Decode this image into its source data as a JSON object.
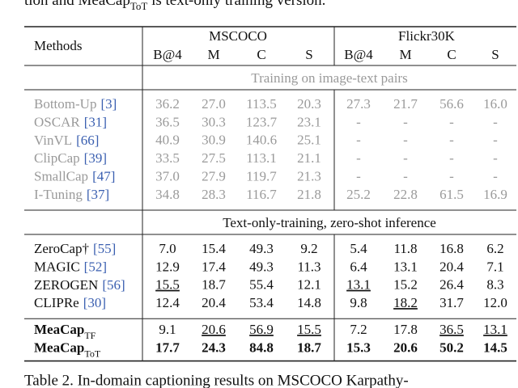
{
  "caption_top": {
    "text": "tion and MeaCap",
    "sub": "ToT",
    "tail": " is text-only training version."
  },
  "table": {
    "method_header": "Methods",
    "groups": [
      "MSCOCO",
      "Flickr30K"
    ],
    "columns": [
      "B@4",
      "M",
      "C",
      "S",
      "B@4",
      "M",
      "C",
      "S"
    ],
    "sections": [
      {
        "title": "Training on image-text pairs",
        "muted": true,
        "rows": [
          {
            "name": "Bottom-Up",
            "ref": "[3]",
            "cells": [
              "36.2",
              "27.0",
              "113.5",
              "20.3",
              "27.3",
              "21.7",
              "56.6",
              "16.0"
            ]
          },
          {
            "name": "OSCAR",
            "ref": "[31]",
            "cells": [
              "36.5",
              "30.3",
              "123.7",
              "23.1",
              "-",
              "-",
              "-",
              "-"
            ]
          },
          {
            "name": "VinVL",
            "ref": "[66]",
            "cells": [
              "40.9",
              "30.9",
              "140.6",
              "25.1",
              "-",
              "-",
              "-",
              "-"
            ]
          },
          {
            "name": "ClipCap",
            "ref": "[39]",
            "cells": [
              "33.5",
              "27.5",
              "113.1",
              "21.1",
              "-",
              "-",
              "-",
              "-"
            ]
          },
          {
            "name": "SmallCap",
            "ref": "[47]",
            "cells": [
              "37.0",
              "27.9",
              "119.7",
              "21.3",
              "-",
              "-",
              "-",
              "-"
            ]
          },
          {
            "name": "I-Tuning",
            "ref": "[37]",
            "cells": [
              "34.8",
              "28.3",
              "116.7",
              "21.8",
              "25.2",
              "22.8",
              "61.5",
              "16.9"
            ]
          }
        ]
      },
      {
        "title": "Text-only-training, zero-shot inference",
        "rows": [
          {
            "name": "ZeroCap†",
            "ref": "[55]",
            "cells": [
              "7.0",
              "15.4",
              "49.3",
              "9.2",
              "5.4",
              "11.8",
              "16.8",
              "6.2"
            ]
          },
          {
            "name": "MAGIC",
            "ref": "[52]",
            "cells": [
              "12.9",
              "17.4",
              "49.3",
              "11.3",
              "6.4",
              "13.1",
              "20.4",
              "7.1"
            ]
          },
          {
            "name": "ZEROGEN",
            "ref": "[56]",
            "cells": [
              "15.5",
              "18.7",
              "55.4",
              "12.1",
              "13.1",
              "15.2",
              "26.4",
              "8.3"
            ],
            "underlined": [
              0,
              4
            ]
          },
          {
            "name": "CLIPRe",
            "ref": "[30]",
            "cells": [
              "12.4",
              "20.4",
              "53.4",
              "14.8",
              "9.8",
              "18.2",
              "31.7",
              "12.0"
            ],
            "underlined": [
              5
            ]
          }
        ]
      },
      {
        "rows": [
          {
            "name": "MeaCap",
            "sub": "TF",
            "bold": true,
            "cells": [
              "9.1",
              "20.6",
              "56.9",
              "15.5",
              "7.2",
              "17.8",
              "36.5",
              "13.1"
            ],
            "underlined": [
              1,
              2,
              3,
              6,
              7
            ]
          },
          {
            "name": "MeaCap",
            "sub": "ToT",
            "bold": true,
            "cells": [
              "17.7",
              "24.3",
              "84.8",
              "18.7",
              "15.3",
              "20.6",
              "50.2",
              "14.5"
            ],
            "bold_cells": true
          }
        ]
      }
    ]
  },
  "caption_bottom": "Table 2.  In-domain captioning results on MSCOCO Karpathy-"
}
